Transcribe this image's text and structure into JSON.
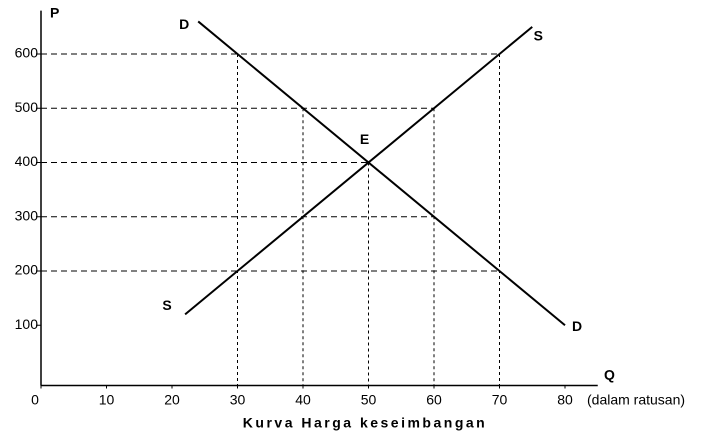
{
  "chart_data": {
    "type": "line",
    "title": "Kurva Harga keseimbangan",
    "x_label": "Q",
    "y_label": "P",
    "x_unit": "(dalam ratusan)",
    "xlim": [
      0,
      85
    ],
    "ylim": [
      0,
      680
    ],
    "xticks": [
      0,
      10,
      20,
      30,
      40,
      50,
      60,
      70,
      80
    ],
    "yticks": [
      100,
      200,
      300,
      400,
      500,
      600
    ],
    "color": "#000000",
    "series": [
      {
        "name": "D",
        "x": [
          24,
          80
        ],
        "values": [
          660,
          100
        ]
      },
      {
        "name": "S",
        "x": [
          22,
          75
        ],
        "values": [
          120,
          650
        ]
      }
    ],
    "equilibrium": {
      "label": "E",
      "x": 50,
      "y": 400
    },
    "h_guides": [
      {
        "y": 600,
        "x": 70
      },
      {
        "y": 500,
        "x": 60
      },
      {
        "y": 400,
        "x": 50
      },
      {
        "y": 300,
        "x": 60
      },
      {
        "y": 200,
        "x": 70
      }
    ],
    "v_guides": [
      {
        "x": 30,
        "y": 600
      },
      {
        "x": 40,
        "y": 500
      },
      {
        "x": 50,
        "y": 400
      },
      {
        "x": 60,
        "y": 500
      },
      {
        "x": 70,
        "y": 600
      }
    ]
  }
}
